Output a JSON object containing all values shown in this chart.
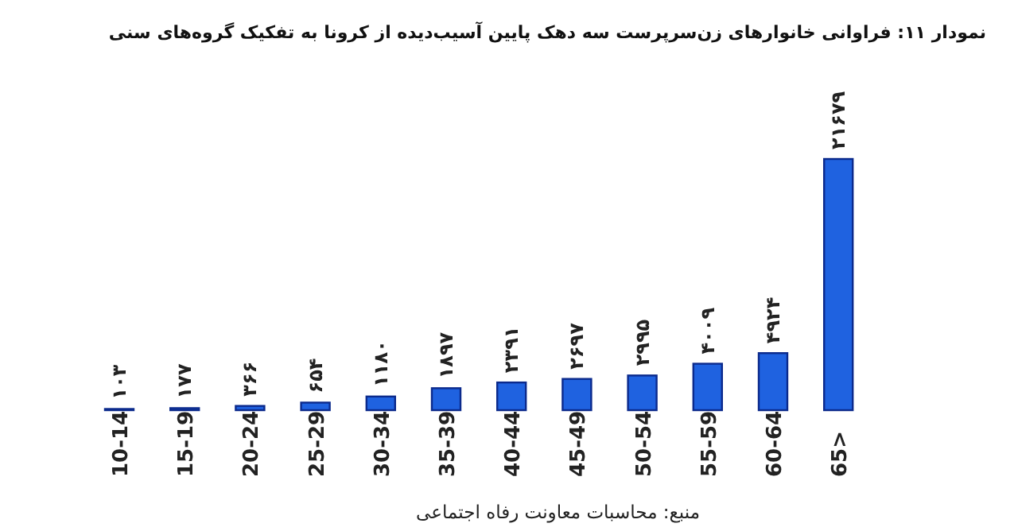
{
  "chart_data": {
    "type": "bar",
    "title": "نمودار ۱۱: فراوانی خانوارهای زن‌سرپرست سه دهک پایین آسیب‌دیده از کرونا به تفکیک گروه‌های سنی",
    "categories": [
      "10-14",
      "15-19",
      "20-24",
      "25-29",
      "30-34",
      "35-39",
      "40-44",
      "45-49",
      "50-54",
      "55-59",
      "60-64",
      "65>"
    ],
    "values": [
      103,
      177,
      366,
      654,
      1180,
      1897,
      2391,
      2697,
      2995,
      4009,
      4924,
      21679
    ],
    "value_labels": [
      "۱۰۳",
      "۱۷۷",
      "۳۶۶",
      "۶۵۴",
      "۱۱۸۰",
      "۱۸۹۷",
      "۲۳۹۱",
      "۲۶۹۷",
      "۲۹۹۵",
      "۴۰۰۹",
      "۴۹۲۴",
      "۲۱۶۷۹"
    ],
    "color": "#1f62e0",
    "annotations": [
      "منبع: محاسبات معاونت رفاه اجتماعی"
    ]
  }
}
